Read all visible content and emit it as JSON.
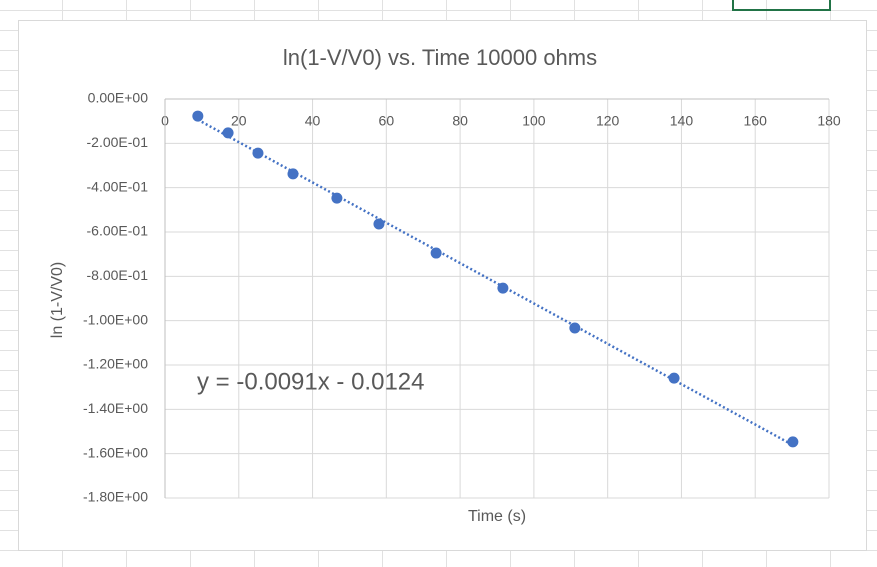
{
  "chart_data": {
    "type": "scatter",
    "title": "ln(1-V/V0) vs. Time 10000 ohms",
    "x_label": "Time (s)",
    "y_label": "ln (1-V/V0)",
    "x": [
      8.9,
      17.1,
      25.2,
      34.7,
      46.6,
      58.0,
      73.5,
      91.6,
      111.1,
      138.0,
      170.2
    ],
    "series": [
      {
        "name": "ln(1-V/V0)",
        "color": "#4472c4",
        "values": [
          -0.077,
          -0.153,
          -0.244,
          -0.338,
          -0.447,
          -0.564,
          -0.695,
          -0.853,
          -1.033,
          -1.259,
          -1.547
        ]
      }
    ],
    "trendline": {
      "equation": "y = -0.0091x - 0.0124",
      "slope": -0.0091,
      "intercept": -0.0124
    },
    "xlim": [
      0,
      180
    ],
    "xticks": [
      0,
      20,
      40,
      60,
      80,
      100,
      120,
      140,
      160,
      180
    ],
    "ylim": [
      -1.8,
      0
    ],
    "yticks": [
      {
        "value": 0,
        "label": "0.00E+00"
      },
      {
        "value": -0.2,
        "label": "-2.00E-01"
      },
      {
        "value": -0.4,
        "label": "-4.00E-01"
      },
      {
        "value": -0.6,
        "label": "-6.00E-01"
      },
      {
        "value": -0.8,
        "label": "-8.00E-01"
      },
      {
        "value": -1.0,
        "label": "-1.00E+00"
      },
      {
        "value": -1.2,
        "label": "-1.20E+00"
      },
      {
        "value": -1.4,
        "label": "-1.40E+00"
      },
      {
        "value": -1.6,
        "label": "-1.60E+00"
      },
      {
        "value": -1.8,
        "label": "-1.80E+00"
      }
    ],
    "grid": true
  }
}
